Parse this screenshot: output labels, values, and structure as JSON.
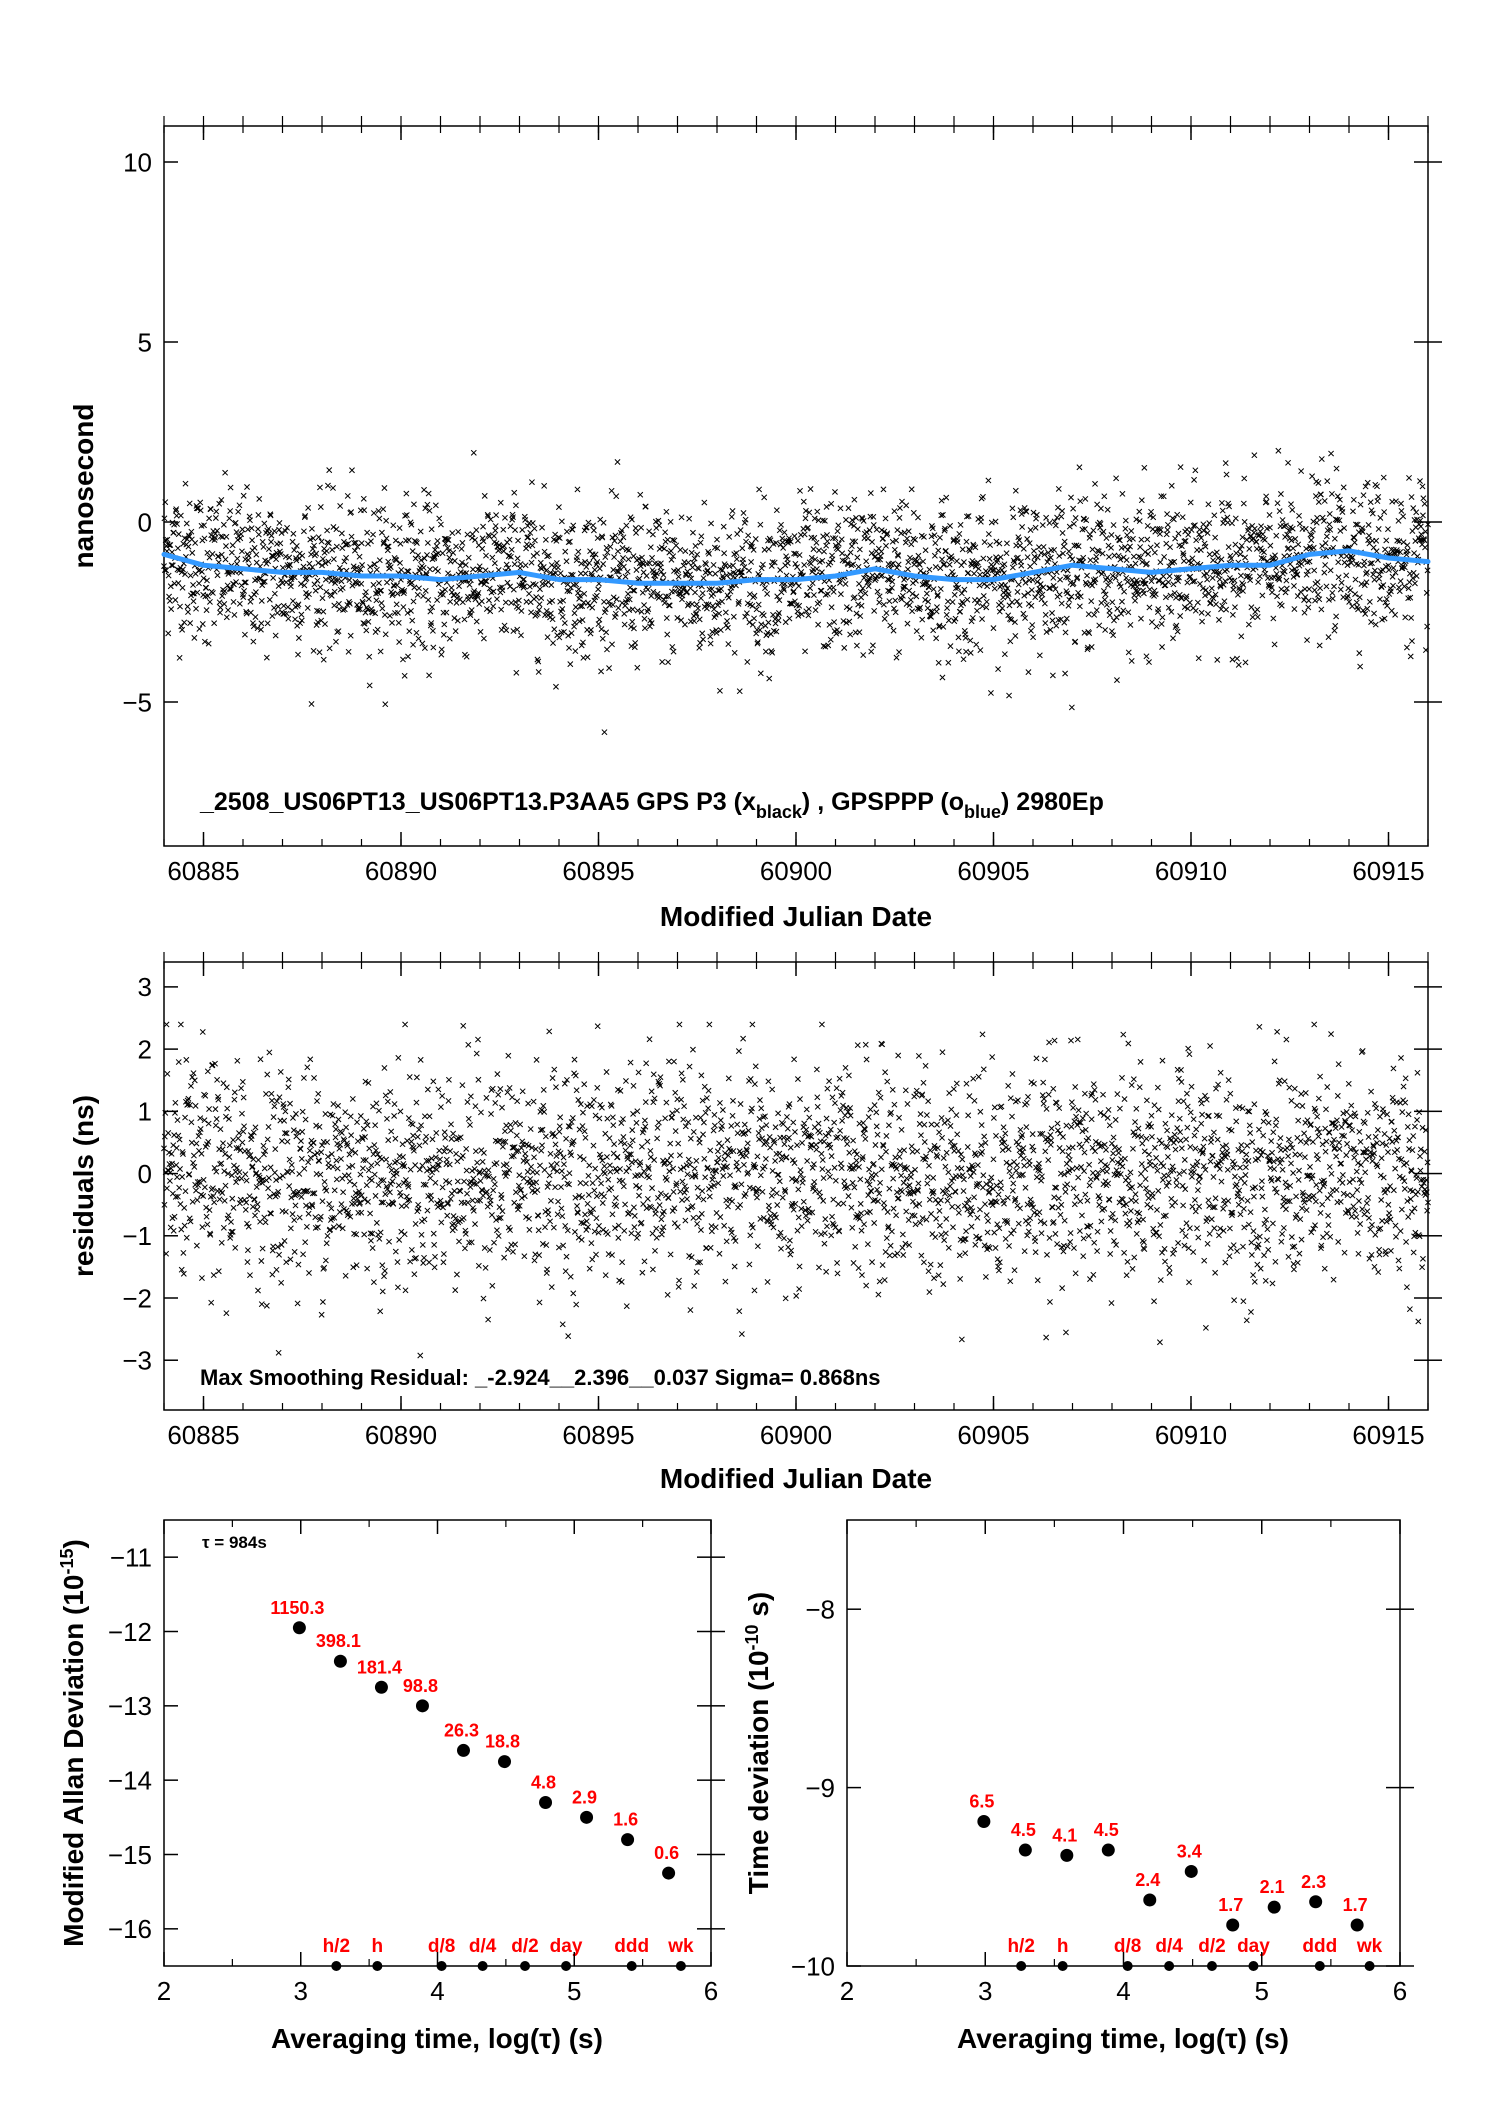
{
  "chart_data": [
    {
      "type": "scatter",
      "id": "phase",
      "xlabel": "Modified Julian Date",
      "ylabel": "nanosecond",
      "xlim": [
        60884.0,
        60916.0
      ],
      "ylim": [
        -9.0,
        11.0
      ],
      "xticks": [
        60885,
        60890,
        60895,
        60900,
        60905,
        60910,
        60915
      ],
      "yticks": [
        -5,
        0,
        5,
        10
      ],
      "grid": false,
      "annotation": {
        "prefix": "_2508_US06PT13_US06PT13.P3AA5     GPS P3 (x",
        "sub1": "black",
        "middle": ") ,  GPSPPP (o",
        "sub2": "blue",
        "suffix": ")  2980Ep"
      },
      "series": [
        {
          "marker": "x",
          "color": "#000000",
          "n_points": 3000,
          "spread_ns": 1.05
        },
        {
          "marker": "o",
          "color": "#3399ff",
          "x": [
            60884.0,
            60885.0,
            60886.0,
            60887.0,
            60888.0,
            60889.0,
            60890.0,
            60891.0,
            60892.0,
            60893.0,
            60894.0,
            60895.0,
            60896.0,
            60897.0,
            60898.0,
            60899.0,
            60900.0,
            60901.0,
            60902.0,
            60903.0,
            60904.0,
            60905.0,
            60906.0,
            60907.0,
            60908.0,
            60909.0,
            60910.0,
            60911.0,
            60912.0,
            60913.0,
            60914.0,
            60915.0,
            60916.0
          ],
          "y": [
            -0.9,
            -1.2,
            -1.3,
            -1.4,
            -1.4,
            -1.5,
            -1.5,
            -1.6,
            -1.5,
            -1.4,
            -1.6,
            -1.6,
            -1.7,
            -1.7,
            -1.7,
            -1.6,
            -1.6,
            -1.5,
            -1.3,
            -1.5,
            -1.6,
            -1.6,
            -1.4,
            -1.2,
            -1.3,
            -1.4,
            -1.3,
            -1.2,
            -1.2,
            -0.9,
            -0.8,
            -1.0,
            -1.1
          ]
        }
      ]
    },
    {
      "type": "scatter",
      "id": "residuals",
      "xlabel": "Modified Julian Date",
      "ylabel": "residuals (ns)",
      "xlim": [
        60884.0,
        60916.0
      ],
      "ylim": [
        -3.8,
        3.4
      ],
      "xticks": [
        60885,
        60890,
        60895,
        60900,
        60905,
        60910,
        60915
      ],
      "yticks": [
        -3,
        -2,
        -1,
        0,
        1,
        2,
        3
      ],
      "grid": false,
      "annotation": "Max Smoothing Residual: _-2.924__2.396__0.037  Sigma= 0.868ns",
      "series": [
        {
          "marker": "x",
          "color": "#000000",
          "n_points": 3000,
          "min": -2.924,
          "max": 2.396,
          "sigma": 0.868
        }
      ]
    },
    {
      "type": "scatter",
      "id": "mdev",
      "xlabel": "Averaging time, log(τ) (s)",
      "ylabel_main": "Modified Allan Deviation (10",
      "ylabel_sup": "-15",
      "ylabel_end": ")",
      "tau_label": "τ = 984s",
      "xlim": [
        2,
        6
      ],
      "ylim": [
        -16.5,
        -10.5
      ],
      "xticks": [
        2,
        3,
        4,
        5,
        6
      ],
      "yticks": [
        -16,
        -15,
        -14,
        -13,
        -12,
        -11
      ],
      "grid": false,
      "points": [
        {
          "x": 2.99,
          "y": -11.95,
          "label": "1150.3"
        },
        {
          "x": 3.29,
          "y": -12.4,
          "label": "398.1"
        },
        {
          "x": 3.59,
          "y": -12.75,
          "label": "181.4"
        },
        {
          "x": 3.89,
          "y": -13.0,
          "label": "98.8"
        },
        {
          "x": 4.19,
          "y": -13.6,
          "label": "26.3"
        },
        {
          "x": 4.49,
          "y": -13.75,
          "label": "18.8"
        },
        {
          "x": 4.79,
          "y": -14.3,
          "label": "4.8"
        },
        {
          "x": 5.09,
          "y": -14.5,
          "label": "2.9"
        },
        {
          "x": 5.39,
          "y": -14.8,
          "label": "1.6"
        },
        {
          "x": 5.69,
          "y": -15.25,
          "label": "0.6"
        }
      ],
      "markers": [
        {
          "x": 3.26,
          "label": "h/2"
        },
        {
          "x": 3.56,
          "label": "h"
        },
        {
          "x": 4.03,
          "label": "d/8"
        },
        {
          "x": 4.33,
          "label": "d/4"
        },
        {
          "x": 4.64,
          "label": "d/2"
        },
        {
          "x": 4.94,
          "label": "day"
        },
        {
          "x": 5.42,
          "label": "ddd"
        },
        {
          "x": 5.78,
          "label": "wk"
        }
      ]
    },
    {
      "type": "scatter",
      "id": "tdev",
      "xlabel": "Averaging time, log(τ) (s)",
      "ylabel_main": "Time deviation (10",
      "ylabel_sup": "-10",
      "ylabel_end": " s)",
      "xlim": [
        2,
        6
      ],
      "ylim": [
        -10.0,
        -7.5
      ],
      "xticks": [
        2,
        3,
        4,
        5,
        6
      ],
      "yticks": [
        -10,
        -9,
        -8
      ],
      "grid": false,
      "points": [
        {
          "x": 2.99,
          "y": -9.19,
          "label": "6.5"
        },
        {
          "x": 3.29,
          "y": -9.35,
          "label": "4.5"
        },
        {
          "x": 3.59,
          "y": -9.38,
          "label": "4.1"
        },
        {
          "x": 3.89,
          "y": -9.35,
          "label": "4.5"
        },
        {
          "x": 4.19,
          "y": -9.63,
          "label": "2.4"
        },
        {
          "x": 4.49,
          "y": -9.47,
          "label": "3.4"
        },
        {
          "x": 4.79,
          "y": -9.77,
          "label": "1.7"
        },
        {
          "x": 5.09,
          "y": -9.67,
          "label": "2.1"
        },
        {
          "x": 5.39,
          "y": -9.64,
          "label": "2.3"
        },
        {
          "x": 5.69,
          "y": -9.77,
          "label": "1.7"
        }
      ],
      "markers": [
        {
          "x": 3.26,
          "label": "h/2"
        },
        {
          "x": 3.56,
          "label": "h"
        },
        {
          "x": 4.03,
          "label": "d/8"
        },
        {
          "x": 4.33,
          "label": "d/4"
        },
        {
          "x": 4.64,
          "label": "d/2"
        },
        {
          "x": 4.94,
          "label": "day"
        },
        {
          "x": 5.42,
          "label": "ddd"
        },
        {
          "x": 5.78,
          "label": "wk"
        }
      ]
    }
  ]
}
